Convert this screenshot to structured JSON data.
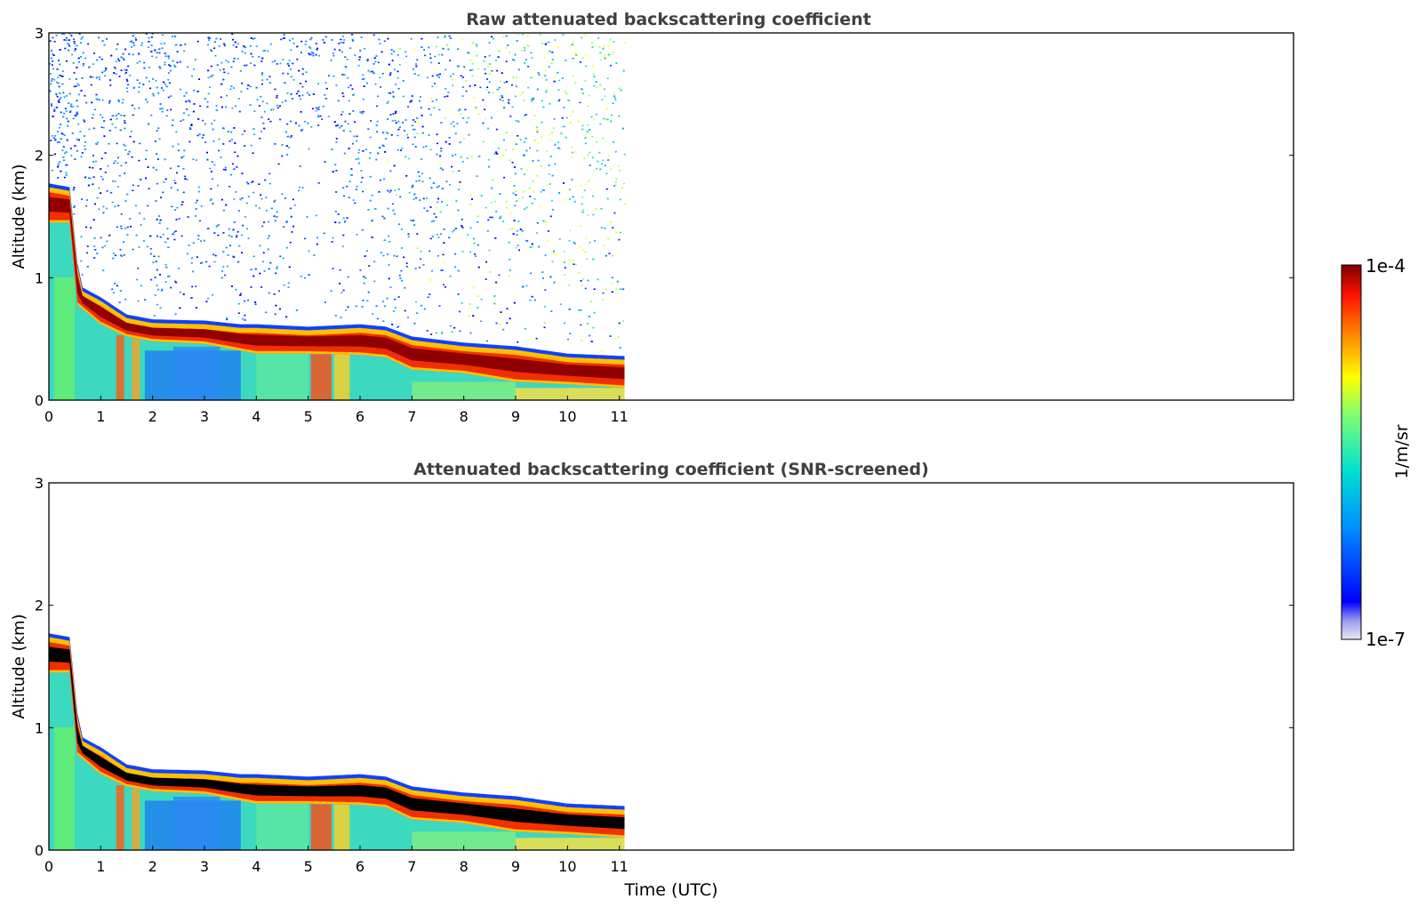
{
  "figure": {
    "xlabel": "Time (UTC)",
    "colorbar": {
      "label": "1/m/sr",
      "top_label": "1e-4",
      "bottom_label": "1e-7",
      "scale": "log",
      "range": [
        1e-07,
        0.0001
      ],
      "colormap": "jet"
    }
  },
  "chart_data": [
    {
      "type": "heatmap",
      "title": "Raw attenuated backscattering coefficient",
      "xlabel": "",
      "ylabel": "Altitude (km)",
      "xlim": [
        0,
        24
      ],
      "ylim": [
        0,
        3
      ],
      "xticks": [
        "0",
        "1",
        "2",
        "3",
        "4",
        "5",
        "6",
        "7",
        "8",
        "9",
        "10",
        "11"
      ],
      "yticks": [
        "0",
        "1",
        "2",
        "3"
      ],
      "data_extent_hours": 11.1,
      "screened": false,
      "cloud_top_km": [
        [
          0.0,
          1.75
        ],
        [
          0.4,
          1.72
        ],
        [
          0.55,
          1.1
        ],
        [
          0.65,
          0.9
        ],
        [
          1.0,
          0.82
        ],
        [
          1.5,
          0.68
        ],
        [
          2.0,
          0.64
        ],
        [
          3.0,
          0.63
        ],
        [
          3.7,
          0.6
        ],
        [
          4.0,
          0.6
        ],
        [
          5.0,
          0.58
        ],
        [
          6.0,
          0.6
        ],
        [
          6.5,
          0.58
        ],
        [
          7.0,
          0.5
        ],
        [
          8.0,
          0.45
        ],
        [
          9.0,
          0.42
        ],
        [
          10.0,
          0.36
        ],
        [
          11.1,
          0.34
        ]
      ],
      "cloud_base_km": [
        [
          0.0,
          1.45
        ],
        [
          0.4,
          1.45
        ],
        [
          0.55,
          0.78
        ],
        [
          1.0,
          0.62
        ],
        [
          1.5,
          0.52
        ],
        [
          2.0,
          0.48
        ],
        [
          3.0,
          0.46
        ],
        [
          4.0,
          0.38
        ],
        [
          5.0,
          0.38
        ],
        [
          6.0,
          0.37
        ],
        [
          6.5,
          0.35
        ],
        [
          7.0,
          0.25
        ],
        [
          8.0,
          0.22
        ],
        [
          9.0,
          0.15
        ],
        [
          10.0,
          0.13
        ],
        [
          11.1,
          0.1
        ]
      ]
    },
    {
      "type": "heatmap",
      "title": "Attenuated backscattering coefficient (SNR-screened)",
      "xlabel": "Time (UTC)",
      "ylabel": "Altitude (km)",
      "xlim": [
        0,
        24
      ],
      "ylim": [
        0,
        3
      ],
      "xticks": [
        "0",
        "1",
        "2",
        "3",
        "4",
        "5",
        "6",
        "7",
        "8",
        "9",
        "10",
        "11"
      ],
      "yticks": [
        "0",
        "1",
        "2",
        "3"
      ],
      "data_extent_hours": 11.1,
      "screened": true,
      "saturated_color": "#000000",
      "cloud_top_km": [
        [
          0.0,
          1.75
        ],
        [
          0.4,
          1.72
        ],
        [
          0.55,
          1.1
        ],
        [
          0.65,
          0.9
        ],
        [
          1.0,
          0.82
        ],
        [
          1.5,
          0.68
        ],
        [
          2.0,
          0.64
        ],
        [
          3.0,
          0.63
        ],
        [
          3.7,
          0.6
        ],
        [
          4.0,
          0.6
        ],
        [
          5.0,
          0.58
        ],
        [
          6.0,
          0.6
        ],
        [
          6.5,
          0.58
        ],
        [
          7.0,
          0.5
        ],
        [
          8.0,
          0.45
        ],
        [
          9.0,
          0.42
        ],
        [
          10.0,
          0.36
        ],
        [
          11.1,
          0.34
        ]
      ],
      "cloud_base_km": [
        [
          0.0,
          1.45
        ],
        [
          0.4,
          1.45
        ],
        [
          0.55,
          0.78
        ],
        [
          1.0,
          0.62
        ],
        [
          1.5,
          0.52
        ],
        [
          2.0,
          0.48
        ],
        [
          3.0,
          0.46
        ],
        [
          4.0,
          0.38
        ],
        [
          5.0,
          0.38
        ],
        [
          6.0,
          0.37
        ],
        [
          6.5,
          0.35
        ],
        [
          7.0,
          0.25
        ],
        [
          8.0,
          0.22
        ],
        [
          9.0,
          0.15
        ],
        [
          10.0,
          0.13
        ],
        [
          11.1,
          0.1
        ]
      ]
    }
  ]
}
